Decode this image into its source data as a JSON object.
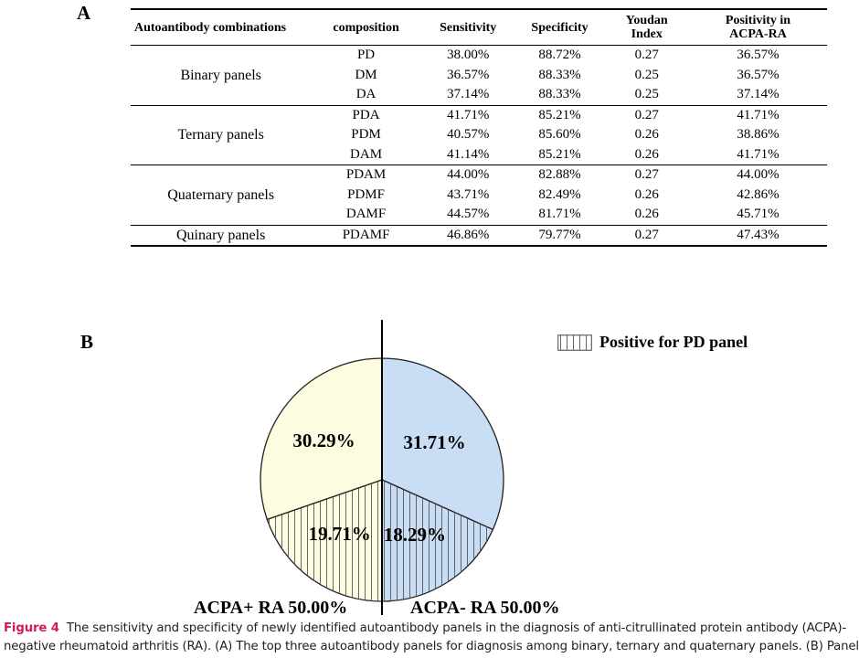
{
  "panel_a_letter": "A",
  "panel_b_letter": "B",
  "table": {
    "headers": {
      "combination": "Autoantibody combinations",
      "composition": "composition",
      "sensitivity": "Sensitivity",
      "specificity": "Specificity",
      "youden": [
        "Youdan",
        "Index"
      ],
      "positivity": [
        "Positivity in",
        "ACPA-RA"
      ]
    },
    "groups": [
      {
        "name": "Binary panels",
        "rows": [
          {
            "composition": "PD",
            "sensitivity": "38.00%",
            "specificity": "88.72%",
            "youden": "0.27",
            "positivity": "36.57%"
          },
          {
            "composition": "DM",
            "sensitivity": "36.57%",
            "specificity": "88.33%",
            "youden": "0.25",
            "positivity": "36.57%"
          },
          {
            "composition": "DA",
            "sensitivity": "37.14%",
            "specificity": "88.33%",
            "youden": "0.25",
            "positivity": "37.14%"
          }
        ]
      },
      {
        "name": "Ternary panels",
        "rows": [
          {
            "composition": "PDA",
            "sensitivity": "41.71%",
            "specificity": "85.21%",
            "youden": "0.27",
            "positivity": "41.71%"
          },
          {
            "composition": "PDM",
            "sensitivity": "40.57%",
            "specificity": "85.60%",
            "youden": "0.26",
            "positivity": "38.86%"
          },
          {
            "composition": "DAM",
            "sensitivity": "41.14%",
            "specificity": "85.21%",
            "youden": "0.26",
            "positivity": "41.71%"
          }
        ]
      },
      {
        "name": "Quaternary panels",
        "rows": [
          {
            "composition": "PDAM",
            "sensitivity": "44.00%",
            "specificity": "82.88%",
            "youden": "0.27",
            "positivity": "44.00%"
          },
          {
            "composition": "PDMF",
            "sensitivity": "43.71%",
            "specificity": "82.49%",
            "youden": "0.26",
            "positivity": "42.86%"
          },
          {
            "composition": "DAMF",
            "sensitivity": "44.57%",
            "specificity": "81.71%",
            "youden": "0.26",
            "positivity": "45.71%"
          }
        ]
      },
      {
        "name": "Quinary panels",
        "rows": [
          {
            "composition": "PDAMF",
            "sensitivity": "46.86%",
            "specificity": "79.77%",
            "youden": "0.27",
            "positivity": "47.43%"
          }
        ]
      }
    ]
  },
  "chart_data": {
    "type": "pie",
    "slices": [
      {
        "label": "31.71%",
        "value": 31.71,
        "color": "#c9ddf5",
        "hatched": false
      },
      {
        "label": "18.29%",
        "value": 18.29,
        "color": "#c9ddf5",
        "hatched": true
      },
      {
        "label": "19.71%",
        "value": 19.71,
        "color": "#fdfce1",
        "hatched": true
      },
      {
        "label": "30.29%",
        "value": 30.29,
        "color": "#fdfce1",
        "hatched": false
      }
    ],
    "halves": {
      "left": "ACPA+ RA 50.00%",
      "right": "ACPA- RA 50.00%"
    },
    "legend": {
      "label": "Positive for PD panel",
      "hatched": true,
      "placement": "top-right"
    }
  },
  "caption": {
    "label": "Figure 4",
    "text": "The sensitivity and specificity of newly identified autoantibody panels in the diagnosis of anti-citrullinated protein antibody (ACPA)-negative rheumatoid arthritis (RA). (A) The top three autoantibody panels for diagnosis among binary, ternary and quaternary panels. (B) Panel"
  }
}
